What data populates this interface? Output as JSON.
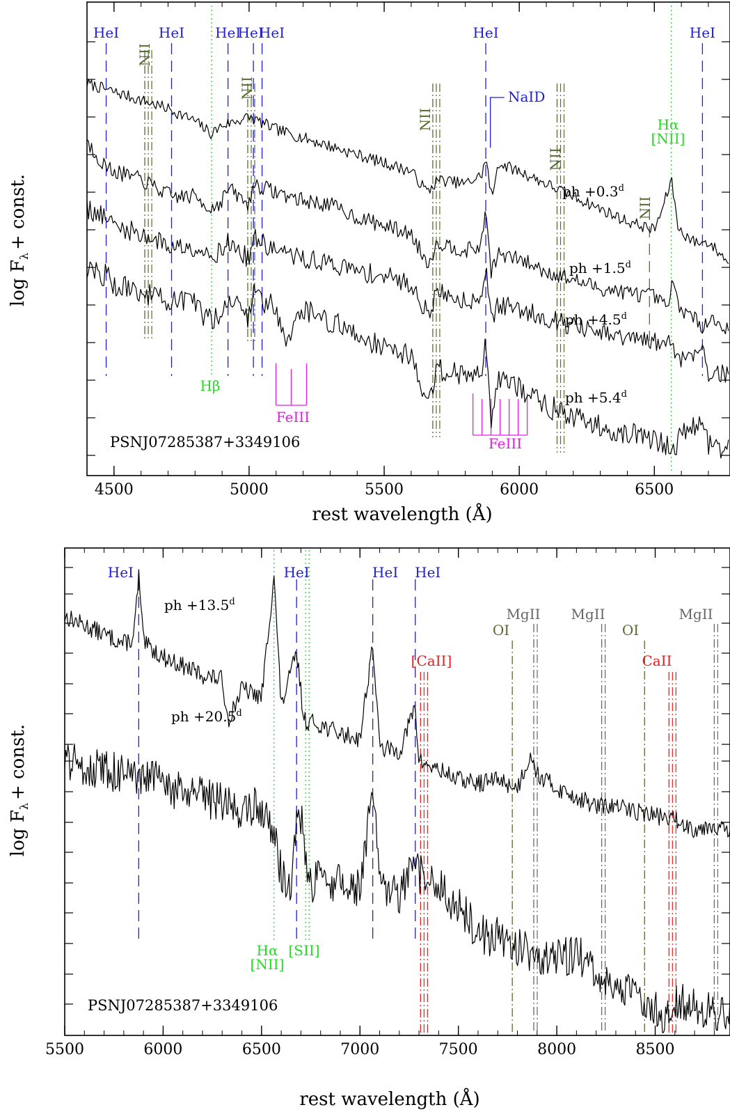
{
  "colors": {
    "HeI": "#2020d0",
    "NII": "#556b2f",
    "Balmer": "#22dd22",
    "FeIII": "#e020e0",
    "NaID": "#2020d0",
    "CaII": "#e02020",
    "OI": "#556b2f",
    "MgII": "#666666",
    "name": "#e02020",
    "spectrum": "#000000"
  },
  "chart_data": [
    {
      "type": "line",
      "object_name": "PSNJ07285387+3349106",
      "xlabel": "rest wavelength (Å)",
      "ylabel_main": "log F",
      "ylabel_sub": "λ",
      "ylabel_tail": "+ const.",
      "xlim": [
        4400,
        6780
      ],
      "ylim": [
        0,
        100
      ],
      "xticks": [
        4500,
        5000,
        5500,
        6000,
        6500
      ],
      "series": [
        {
          "phase": "ph  +0.3",
          "unit": "d",
          "x": [
            4400,
            4500,
            4600,
            4700,
            4800,
            4860,
            4900,
            5000,
            5100,
            5200,
            5300,
            5400,
            5500,
            5600,
            5660,
            5700,
            5800,
            5860,
            5876,
            5900,
            5920,
            6000,
            6100,
            6200,
            6300,
            6400,
            6500,
            6530,
            6563,
            6590,
            6650,
            6700,
            6780
          ],
          "y": [
            90,
            88,
            86,
            84,
            81,
            78,
            80,
            82,
            79,
            77,
            75,
            73,
            71,
            69,
            64,
            67,
            66,
            68,
            72,
            62,
            71,
            69,
            66,
            63,
            60,
            57,
            55,
            60,
            67,
            55,
            52,
            52,
            47
          ]
        },
        {
          "phase": "ph  +1.5",
          "unit": "d",
          "x": [
            4400,
            4470,
            4500,
            4600,
            4713,
            4800,
            4860,
            4900,
            4922,
            5000,
            5015,
            5100,
            5200,
            5300,
            5400,
            5500,
            5600,
            5660,
            5700,
            5800,
            5860,
            5876,
            5895,
            5920,
            6000,
            6100,
            6200,
            6300,
            6400,
            6500,
            6550,
            6563,
            6600,
            6678,
            6700,
            6780
          ],
          "y": [
            76,
            70,
            69,
            67,
            63,
            63,
            60,
            62,
            65,
            61,
            66,
            64,
            62,
            61,
            58,
            56,
            54,
            47,
            52,
            50,
            51,
            61,
            45,
            49,
            48,
            45,
            43,
            41,
            40,
            39,
            36,
            42,
            36,
            32,
            34,
            31
          ]
        },
        {
          "phase": "ph  +4.5",
          "unit": "d",
          "x": [
            4400,
            4470,
            4500,
            4600,
            4713,
            4800,
            4860,
            4900,
            4922,
            5000,
            5015,
            5100,
            5200,
            5300,
            5400,
            5500,
            5600,
            5660,
            5700,
            5800,
            5860,
            5876,
            5895,
            5920,
            6000,
            6100,
            6200,
            6300,
            6400,
            6500,
            6563,
            6600,
            6678,
            6700,
            6780
          ],
          "y": [
            60,
            58,
            56,
            54,
            51,
            51,
            49,
            50,
            52,
            48,
            53,
            50,
            48,
            47,
            45,
            44,
            42,
            35,
            40,
            38,
            39,
            47,
            33,
            37,
            36,
            34,
            32,
            30,
            29,
            28,
            28,
            24,
            27,
            21,
            20
          ]
        },
        {
          "phase": "ph  +5.4",
          "unit": "d",
          "x": [
            4400,
            4470,
            4500,
            4600,
            4713,
            4800,
            4860,
            4900,
            4922,
            5000,
            5015,
            5100,
            5140,
            5200,
            5300,
            5400,
            5500,
            5600,
            5660,
            5700,
            5800,
            5860,
            5876,
            5895,
            5920,
            6000,
            6100,
            6200,
            6300,
            6400,
            6500,
            6563,
            6600,
            6678,
            6700,
            6780
          ],
          "y": [
            46,
            44,
            42,
            40,
            38,
            37,
            33,
            36,
            39,
            34,
            40,
            36,
            29,
            36,
            33,
            30,
            27,
            25,
            13,
            22,
            20,
            21,
            31,
            8,
            20,
            17,
            13,
            10,
            8,
            6,
            5,
            2,
            6,
            9,
            4,
            2
          ]
        }
      ],
      "line_ids": [
        {
          "label": "HeI",
          "x": 4471,
          "style": "dashed",
          "color": "HeI"
        },
        {
          "label": "HeI",
          "x": 4713,
          "style": "dashed",
          "color": "HeI"
        },
        {
          "label": "HeI",
          "x": 4922,
          "style": "dashed",
          "color": "HeI"
        },
        {
          "label": "HeI",
          "x": 5016,
          "style": "dashed",
          "color": "HeI"
        },
        {
          "label": "HeI",
          "x": 5048,
          "style": "dashed",
          "color": "HeI"
        },
        {
          "label": "HeI",
          "x": 5876,
          "style": "dashed",
          "color": "HeI"
        },
        {
          "label": "HeI",
          "x": 6678,
          "style": "dashed",
          "color": "HeI"
        },
        {
          "label": "NII",
          "x": 4614,
          "style": "dashdot",
          "color": "NII"
        },
        {
          "label": "NII",
          "x": 4995,
          "style": "dashdot",
          "color": "NII"
        },
        {
          "label": "NII",
          "x": 5680,
          "style": "dashdot",
          "color": "NII"
        },
        {
          "label": "NII",
          "x": 6140,
          "style": "dashdot",
          "color": "NII"
        },
        {
          "label": "NII",
          "x": 6482,
          "style": "dashed",
          "color": "NII"
        },
        {
          "label": "Hβ",
          "x": 4861,
          "style": "dotted",
          "color": "Balmer"
        },
        {
          "label": "Hα",
          "label2": "[NII]",
          "x": 6563,
          "style": "dotted",
          "color": "Balmer"
        },
        {
          "label": "NaID",
          "x": 5893,
          "style": "solid",
          "color": "NaID"
        },
        {
          "label": "FeIII",
          "x": 5156,
          "style": "comb",
          "color": "FeIII"
        },
        {
          "label": "FeIII",
          "x": 5929,
          "style": "comb",
          "color": "FeIII"
        }
      ]
    },
    {
      "type": "line",
      "object_name": "PSNJ07285387+3349106",
      "xlabel": "rest wavelength (Å)",
      "ylabel_main": "log F",
      "ylabel_sub": "λ",
      "ylabel_tail": "+ const.",
      "xlim": [
        5500,
        8880
      ],
      "ylim": [
        0,
        100
      ],
      "xticks": [
        5500,
        6000,
        6500,
        7000,
        7500,
        8000,
        8500
      ],
      "series": [
        {
          "phase": "ph  +13.5",
          "unit": "d",
          "x": [
            5500,
            5600,
            5700,
            5800,
            5850,
            5876,
            5900,
            6000,
            6100,
            6200,
            6300,
            6330,
            6400,
            6500,
            6563,
            6600,
            6678,
            6716,
            6800,
            6900,
            7000,
            7065,
            7100,
            7200,
            7280,
            7300,
            7400,
            7500,
            7600,
            7700,
            7800,
            7870,
            7900,
            8000,
            8100,
            8200,
            8300,
            8400,
            8500,
            8600,
            8700,
            8800,
            8880
          ],
          "y": [
            90,
            88,
            86,
            84,
            85,
            99,
            84,
            81,
            79,
            77,
            76,
            67,
            74,
            72,
            99,
            70,
            82,
            67,
            66,
            64,
            63,
            84,
            61,
            60,
            70,
            58,
            56,
            54,
            53,
            54,
            52,
            60,
            55,
            52,
            50,
            48,
            48,
            47,
            46,
            45,
            43,
            44,
            42
          ]
        },
        {
          "phase": "ph  +20.5",
          "unit": "d",
          "x": [
            5500,
            5600,
            5700,
            5800,
            5876,
            5950,
            6000,
            6100,
            6200,
            6300,
            6400,
            6500,
            6563,
            6600,
            6650,
            6678,
            6716,
            6730,
            6800,
            6900,
            7000,
            7065,
            7100,
            7200,
            7280,
            7300,
            7400,
            7500,
            7600,
            7700,
            7800,
            7900,
            8000,
            8100,
            8200,
            8300,
            8400,
            8500,
            8560,
            8600,
            8700,
            8800,
            8880
          ],
          "y": [
            58,
            57,
            56,
            55,
            53,
            55,
            52,
            51,
            50,
            49,
            47,
            48,
            42,
            33,
            30,
            45,
            44,
            30,
            32,
            31,
            30,
            52,
            30,
            28,
            35,
            33,
            30,
            26,
            20,
            19,
            17,
            15,
            14,
            16,
            10,
            8,
            6,
            4,
            0,
            6,
            4,
            2,
            3
          ]
        }
      ],
      "line_ids": [
        {
          "label": "HeI",
          "x": 5876,
          "style": "dashed",
          "color": "HeI"
        },
        {
          "label": "HeI",
          "x": 6678,
          "style": "dashed",
          "color": "HeI"
        },
        {
          "label": "HeI",
          "x": 7065,
          "style": "dashed",
          "color": "HeI"
        },
        {
          "label": "HeI",
          "x": 7281,
          "style": "dashed",
          "color": "HeI"
        },
        {
          "label": "Hα",
          "label2": "[NII]",
          "x": 6563,
          "style": "dotted",
          "color": "Balmer"
        },
        {
          "label": "[SII]",
          "x": 6724,
          "style": "dotted",
          "color": "Balmer"
        },
        {
          "label": "[CaII]",
          "x": 7308,
          "style": "dashdot",
          "color": "CaII"
        },
        {
          "label": "OI",
          "x": 7774,
          "style": "dashdot",
          "color": "OI"
        },
        {
          "label": "MgII",
          "x": 7883,
          "style": "dashdot",
          "color": "MgII"
        },
        {
          "label": "MgII",
          "x": 8228,
          "style": "dashdot",
          "color": "MgII"
        },
        {
          "label": "OI",
          "x": 8446,
          "style": "dashdot",
          "color": "OI"
        },
        {
          "label": "CaII",
          "x": 8570,
          "style": "dashdot",
          "color": "CaII"
        },
        {
          "label": "MgII",
          "x": 8800,
          "style": "dashdot",
          "color": "MgII"
        }
      ]
    }
  ]
}
